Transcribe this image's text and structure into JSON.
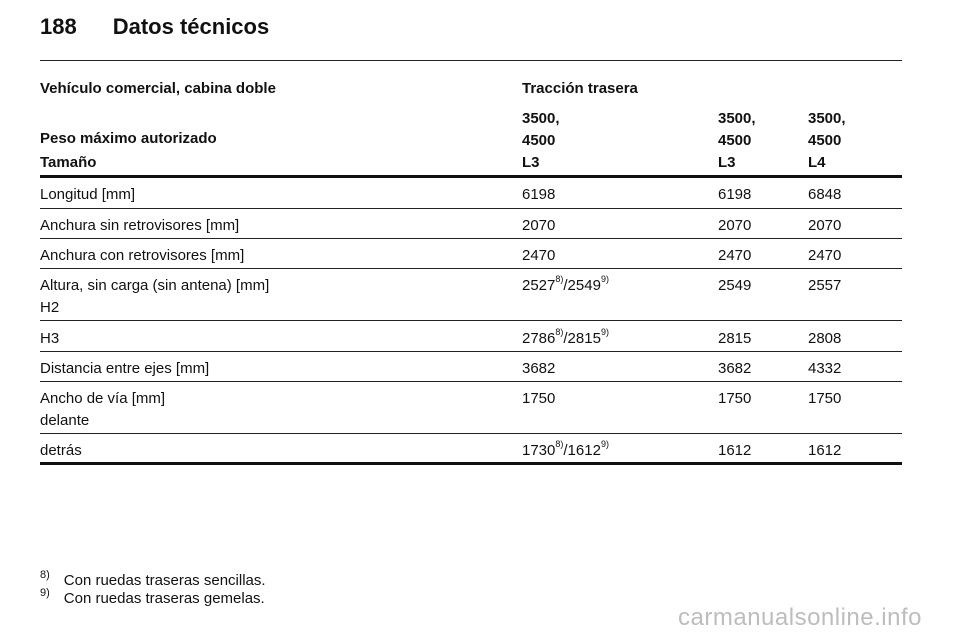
{
  "header": {
    "page_number": "188",
    "title": "Datos técnicos"
  },
  "table": {
    "vehicle_label": "Vehículo comercial, cabina doble",
    "traction_label": "Tracción trasera",
    "weight_label": "Peso máximo autorizado",
    "weights": [
      {
        "line1": "3500,",
        "line2": "4500"
      },
      {
        "line1": "3500,",
        "line2": "4500"
      },
      {
        "line1": "3500,",
        "line2": "4500"
      }
    ],
    "size_label": "Tamaño",
    "sizes": [
      "L3",
      "L3",
      "L4"
    ],
    "rows": [
      {
        "label": "Longitud [mm]",
        "values": [
          "6198",
          "6198",
          "6848"
        ]
      },
      {
        "label": "Anchura sin retrovisores [mm]",
        "values": [
          "2070",
          "2070",
          "2070"
        ]
      },
      {
        "label": "Anchura con retrovisores [mm]",
        "values": [
          "2470",
          "2470",
          "2470"
        ]
      },
      {
        "label": "Altura, sin carga (sin antena) [mm]",
        "sublabel": "H2",
        "v1a": "2527",
        "v1a_note": "8)",
        "v1b": "/2549",
        "v1b_note": "9)",
        "values": [
          "2549",
          "2557"
        ]
      },
      {
        "label": "H3",
        "v1a": "2786",
        "v1a_note": "8)",
        "v1b": "/2815",
        "v1b_note": "9)",
        "values": [
          "2815",
          "2808"
        ]
      },
      {
        "label": "Distancia entre ejes [mm]",
        "values": [
          "3682",
          "3682",
          "4332"
        ]
      },
      {
        "label": "Ancho de vía [mm]",
        "sublabel": "delante",
        "values": [
          "1750",
          "1750",
          "1750"
        ]
      },
      {
        "label": "detrás",
        "v1a": "1730",
        "v1a_note": "8)",
        "v1b": "/1612",
        "v1b_note": "9)",
        "values": [
          "1612",
          "1612"
        ]
      }
    ]
  },
  "footnotes": [
    {
      "mark": "8)",
      "text": "Con ruedas traseras sencillas."
    },
    {
      "mark": "9)",
      "text": "Con ruedas traseras gemelas."
    }
  ],
  "watermark": "carmanualsonline.info"
}
